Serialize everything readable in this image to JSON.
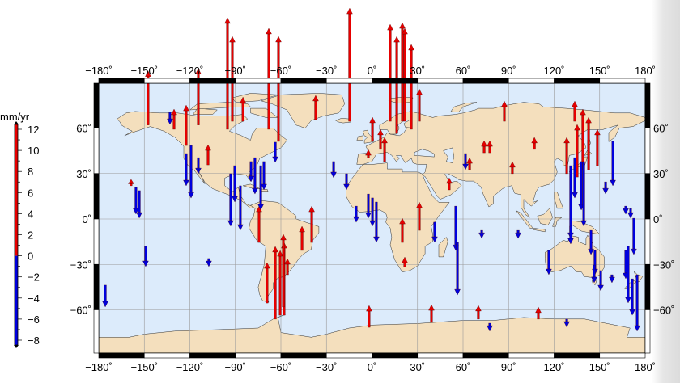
{
  "colors": {
    "land": "#f4dfbd",
    "ocean": "#dcebfb",
    "uplift": "#e60000",
    "subsidence": "#0000dd",
    "grid": "#9a9a9a"
  },
  "map": {
    "projection": "equirectangular",
    "lon_range": [
      -180,
      180
    ],
    "lat_range": [
      -90,
      90
    ],
    "grid_interval_deg": 30,
    "lon_labels": [
      "−180˚",
      "−150˚",
      "−120˚",
      "−90˚",
      "−60˚",
      "−30˚",
      "0˚",
      "30˚",
      "60˚",
      "90˚",
      "120˚",
      "150˚",
      "180˚"
    ],
    "lat_labels": [
      "60˚",
      "30˚",
      "0˚",
      "−30˚",
      "−60˚"
    ]
  },
  "colorbar": {
    "unit": "mm/yr",
    "range": [
      -8,
      12
    ],
    "ticks": [
      "12",
      "10",
      "8",
      "6",
      "4",
      "2",
      "0",
      "−2",
      "−4",
      "−6",
      "−8"
    ]
  },
  "stations": [
    {
      "lon": -147.5,
      "lat": 62,
      "v": 6.7
    },
    {
      "lon": -95.2,
      "lat": 59.2,
      "v": 13.8
    },
    {
      "lon": -92,
      "lat": 64.5,
      "v": 10.5
    },
    {
      "lon": -68,
      "lat": 59.2,
      "v": 12.5
    },
    {
      "lon": -61.6,
      "lat": 51.2,
      "v": 13
    },
    {
      "lon": -14.7,
      "lat": 64.5,
      "v": 14
    },
    {
      "lon": -37.1,
      "lat": 65.6,
      "v": 3
    },
    {
      "lon": 12,
      "lat": 64.5,
      "v": 12
    },
    {
      "lon": 16.3,
      "lat": 56.5,
      "v": 12
    },
    {
      "lon": 20,
      "lat": 64.5,
      "v": 12.2
    },
    {
      "lon": 21.6,
      "lat": 64.5,
      "v": 11.5
    },
    {
      "lon": 25.9,
      "lat": 59.2,
      "v": 10.5
    },
    {
      "lon": 31.2,
      "lat": 64.5,
      "v": 4
    },
    {
      "lon": -114.4,
      "lat": 62,
      "v": 7
    },
    {
      "lon": -122.4,
      "lat": 48.5,
      "v": 5
    },
    {
      "lon": -108,
      "lat": 35.7,
      "v": 2.5
    },
    {
      "lon": -85,
      "lat": 64.5,
      "v": 3
    },
    {
      "lon": -130.4,
      "lat": 59.2,
      "v": 2.5
    },
    {
      "lon": 87.2,
      "lat": 64.5,
      "v": 2.5
    },
    {
      "lon": 133.6,
      "lat": 64.5,
      "v": 2.5
    },
    {
      "lon": 138.9,
      "lat": 32.5,
      "v": 7.5
    },
    {
      "lon": 135.2,
      "lat": 27.7,
      "v": 6.5
    },
    {
      "lon": 128.3,
      "lat": 29.9,
      "v": 4.5
    },
    {
      "lon": 142.7,
      "lat": 32.5,
      "v": 6.5
    },
    {
      "lon": 148.5,
      "lat": 35.2,
      "v": 4.5
    },
    {
      "lon": 0.3,
      "lat": 51.2,
      "v": 3
    },
    {
      "lon": 5.6,
      "lat": 45.9,
      "v": 2.5
    },
    {
      "lon": 8.3,
      "lat": 37.9,
      "v": 3
    },
    {
      "lon": -2.4,
      "lat": 40.5,
      "v": 1
    },
    {
      "lon": 73.9,
      "lat": 43.7,
      "v": 1.5
    },
    {
      "lon": 77.6,
      "lat": 43.7,
      "v": 1.5
    },
    {
      "lon": 107,
      "lat": 45.9,
      "v": 1.5
    },
    {
      "lon": 92.5,
      "lat": 29.9,
      "v": 1.5
    },
    {
      "lon": 64.3,
      "lat": 32.5,
      "v": 1.5
    },
    {
      "lon": -74.4,
      "lat": -15.5,
      "v": 4.5
    },
    {
      "lon": -63.7,
      "lat": -66.1,
      "v": 9
    },
    {
      "lon": -60.5,
      "lat": -63.5,
      "v": 8
    },
    {
      "lon": -57.9,
      "lat": -63.5,
      "v": 9
    },
    {
      "lon": -69.1,
      "lat": -55.5,
      "v": 5
    },
    {
      "lon": -39.7,
      "lat": -15.5,
      "v": 4.5
    },
    {
      "lon": -46.1,
      "lat": -20.8,
      "v": 3
    },
    {
      "lon": -58.4,
      "lat": -58.1,
      "v": 9
    },
    {
      "lon": -55.7,
      "lat": -36.8,
      "v": 2
    },
    {
      "lon": 21.6,
      "lat": -31.5,
      "v": 1.2
    },
    {
      "lon": -1.9,
      "lat": -71.5,
      "v": 2.7
    },
    {
      "lon": 39.2,
      "lat": -68.3,
      "v": 2.2
    },
    {
      "lon": 70.1,
      "lat": -66.1,
      "v": 1.7
    },
    {
      "lon": 109.6,
      "lat": -66.1,
      "v": 1.5
    },
    {
      "lon": 20,
      "lat": -15.5,
      "v": 3
    },
    {
      "lon": -158.7,
      "lat": 21.9,
      "v": 0.8
    },
    {
      "lon": 31.2,
      "lat": -7.5,
      "v": 3.5
    },
    {
      "lon": 50.9,
      "lat": 19.2,
      "v": 1.5
    },
    {
      "lon": -175.7,
      "lat": -43.7,
      "v": -2.7
    },
    {
      "lon": -155.5,
      "lat": 20.8,
      "v": -3.3
    },
    {
      "lon": -153.3,
      "lat": 18.7,
      "v": -3.4
    },
    {
      "lon": -149.1,
      "lat": -18.1,
      "v": -2.5
    },
    {
      "lon": -133.1,
      "lat": 70.4,
      "v": -1.5
    },
    {
      "lon": -119.2,
      "lat": 48.5,
      "v": -6.5
    },
    {
      "lon": -122.4,
      "lat": 43.2,
      "v": -4
    },
    {
      "lon": -114.4,
      "lat": 40.5,
      "v": -2
    },
    {
      "lon": -93.1,
      "lat": 29.9,
      "v": -6.5
    },
    {
      "lon": -90.4,
      "lat": 35.2,
      "v": -4.5
    },
    {
      "lon": -86.7,
      "lat": 21.9,
      "v": -5.5
    },
    {
      "lon": -79.7,
      "lat": 37.9,
      "v": -2.5
    },
    {
      "lon": -77.1,
      "lat": 40.5,
      "v": -4.5
    },
    {
      "lon": -73.3,
      "lat": 35.2,
      "v": -5.5
    },
    {
      "lon": -71.2,
      "lat": 37.9,
      "v": -3.5
    },
    {
      "lon": -63.7,
      "lat": 50.7,
      "v": -2.5
    },
    {
      "lon": -25.3,
      "lat": 37.9,
      "v": -2
    },
    {
      "lon": -16.8,
      "lat": 29.9,
      "v": -2
    },
    {
      "lon": -2.4,
      "lat": 16.5,
      "v": -3
    },
    {
      "lon": 0.3,
      "lat": 13.9,
      "v": -3.5
    },
    {
      "lon": 2.9,
      "lat": 11.2,
      "v": -5
    },
    {
      "lon": -10.4,
      "lat": 8.5,
      "v": -2
    },
    {
      "lon": 41.3,
      "lat": -2.1,
      "v": -2.5
    },
    {
      "lon": 55.2,
      "lat": 8.5,
      "v": -5.5
    },
    {
      "lon": 56.3,
      "lat": -15.5,
      "v": -6.5
    },
    {
      "lon": 72.3,
      "lat": -7.5,
      "v": -1
    },
    {
      "lon": 61.6,
      "lat": 43.2,
      "v": -2
    },
    {
      "lon": 144.3,
      "lat": -7.5,
      "v": -3
    },
    {
      "lon": 133.6,
      "lat": 40.5,
      "v": -5
    },
    {
      "lon": 130.9,
      "lat": 35.2,
      "v": -9
    },
    {
      "lon": 137.9,
      "lat": 37.9,
      "v": -6
    },
    {
      "lon": 139.5,
      "lat": 37.9,
      "v": -8
    },
    {
      "lon": 158.7,
      "lat": 51.2,
      "v": -5.5
    },
    {
      "lon": 153.9,
      "lat": 24.5,
      "v": -1.5
    },
    {
      "lon": 167.2,
      "lat": 8.5,
      "v": -1
    },
    {
      "lon": 170.4,
      "lat": 6.9,
      "v": -1.2
    },
    {
      "lon": 172.5,
      "lat": 0.5,
      "v": -4.5
    },
    {
      "lon": 167.2,
      "lat": -20.8,
      "v": -3.5
    },
    {
      "lon": 168.8,
      "lat": -18.1,
      "v": -7
    },
    {
      "lon": 171.5,
      "lat": -39.5,
      "v": -4.5
    },
    {
      "lon": 174.7,
      "lat": -36.8,
      "v": -7
    },
    {
      "lon": 158.1,
      "lat": -36.8,
      "v": -1
    },
    {
      "lon": 116.5,
      "lat": -20.8,
      "v": -3
    },
    {
      "lon": 146.9,
      "lat": -20.8,
      "v": -3
    },
    {
      "lon": 146.4,
      "lat": -30.4,
      "v": -2.2
    },
    {
      "lon": 150.7,
      "lat": -34.1,
      "v": -2.5
    },
    {
      "lon": 130.9,
      "lat": -4.8,
      "v": -2.2
    },
    {
      "lon": 96.3,
      "lat": -7.5,
      "v": -1
    },
    {
      "lon": 77.6,
      "lat": -68.8,
      "v": -1
    },
    {
      "lon": 128.3,
      "lat": -66.1,
      "v": -1
    },
    {
      "lon": -107.5,
      "lat": -26.1,
      "v": -1
    }
  ]
}
